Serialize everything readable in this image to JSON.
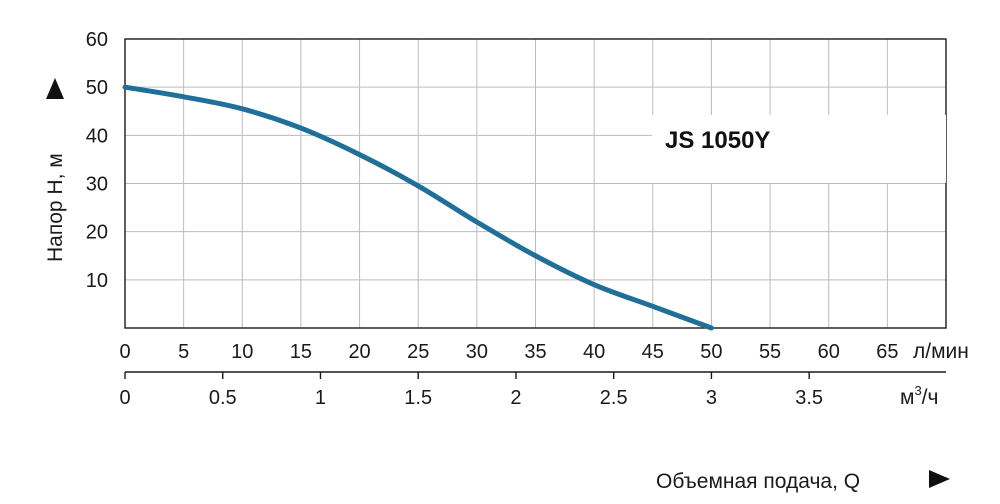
{
  "chart_data": {
    "type": "line",
    "model_label": "JS 1050Y",
    "ylabel": "Напор H, м",
    "x_primary_unit": "л/мин",
    "x_secondary_unit": "м³/ч",
    "x_secondary_unit_base": "м",
    "x_secondary_unit_sup": "3",
    "x_secondary_unit_tail": "/ч",
    "footer_label": "Объемная подача, Q",
    "xlim": [
      0,
      70
    ],
    "ylim": [
      0,
      60
    ],
    "x_ticks": [
      "0",
      "5",
      "10",
      "15",
      "20",
      "25",
      "30",
      "35",
      "40",
      "45",
      "50",
      "55",
      "60",
      "65"
    ],
    "y_ticks": [
      "10",
      "20",
      "30",
      "40",
      "50",
      "60"
    ],
    "secondary_ticks": [
      {
        "label": "0",
        "value": 0
      },
      {
        "label": "0.5",
        "value": 0.5
      },
      {
        "label": "1",
        "value": 1
      },
      {
        "label": "1.5",
        "value": 1.5
      },
      {
        "label": "2",
        "value": 2
      },
      {
        "label": "2.5",
        "value": 2.5
      },
      {
        "label": "3",
        "value": 3
      },
      {
        "label": "3.5",
        "value": 3.5
      }
    ],
    "grid": true,
    "line_color": "#1f6f99",
    "series": [
      {
        "x": [
          0,
          5,
          10,
          15,
          20,
          25,
          30,
          35,
          40,
          45,
          50
        ],
        "y": [
          50,
          48,
          45.5,
          41.5,
          36,
          29.5,
          22,
          15,
          9,
          4.5,
          0
        ]
      }
    ]
  }
}
